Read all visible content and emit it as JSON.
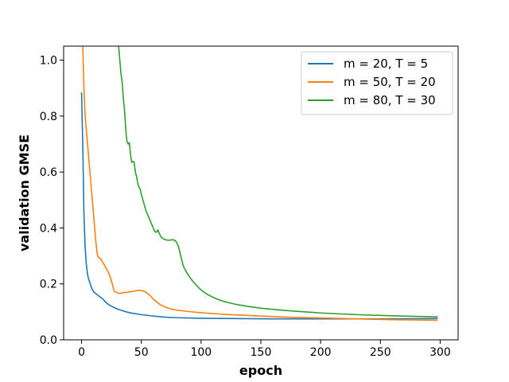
{
  "chart_data": {
    "type": "line",
    "xlabel": "epoch",
    "ylabel": "validation GMSE",
    "xlim": [
      -15,
      315
    ],
    "ylim": [
      0.0,
      1.05
    ],
    "xticks": [
      0,
      50,
      100,
      150,
      200,
      250,
      300
    ],
    "yticks": [
      0.0,
      0.2,
      0.4,
      0.6,
      0.8,
      1.0
    ],
    "grid": false,
    "legend_position": "top-right",
    "series": [
      {
        "name": "m = 20, T = 5",
        "color": "#1f77b4",
        "points": [
          [
            0,
            0.885
          ],
          [
            1,
            0.7
          ],
          [
            2,
            0.45
          ],
          [
            3,
            0.33
          ],
          [
            4,
            0.27
          ],
          [
            5,
            0.235
          ],
          [
            6,
            0.215
          ],
          [
            7,
            0.205
          ],
          [
            8,
            0.19
          ],
          [
            9,
            0.18
          ],
          [
            10,
            0.172
          ],
          [
            12,
            0.165
          ],
          [
            15,
            0.155
          ],
          [
            18,
            0.145
          ],
          [
            20,
            0.135
          ],
          [
            23,
            0.125
          ],
          [
            26,
            0.118
          ],
          [
            30,
            0.11
          ],
          [
            35,
            0.103
          ],
          [
            40,
            0.097
          ],
          [
            50,
            0.09
          ],
          [
            60,
            0.085
          ],
          [
            70,
            0.081
          ],
          [
            80,
            0.079
          ],
          [
            100,
            0.077
          ],
          [
            130,
            0.076
          ],
          [
            160,
            0.075
          ],
          [
            200,
            0.075
          ],
          [
            250,
            0.075
          ],
          [
            298,
            0.076
          ]
        ]
      },
      {
        "name": "m = 50, T = 20",
        "color": "#ff7f0e",
        "points": [
          [
            1,
            1.05
          ],
          [
            2,
            0.9
          ],
          [
            3,
            0.8
          ],
          [
            5,
            0.7
          ],
          [
            7,
            0.6
          ],
          [
            9,
            0.5
          ],
          [
            11,
            0.4
          ],
          [
            12,
            0.35
          ],
          [
            13,
            0.31
          ],
          [
            14,
            0.295
          ],
          [
            16,
            0.29
          ],
          [
            18,
            0.275
          ],
          [
            20,
            0.26
          ],
          [
            22,
            0.245
          ],
          [
            24,
            0.225
          ],
          [
            26,
            0.195
          ],
          [
            27,
            0.178
          ],
          [
            28,
            0.172
          ],
          [
            30,
            0.168
          ],
          [
            32,
            0.165
          ],
          [
            34,
            0.168
          ],
          [
            36,
            0.17
          ],
          [
            38,
            0.169
          ],
          [
            40,
            0.172
          ],
          [
            42,
            0.172
          ],
          [
            44,
            0.174
          ],
          [
            46,
            0.176
          ],
          [
            48,
            0.177
          ],
          [
            50,
            0.176
          ],
          [
            52,
            0.174
          ],
          [
            54,
            0.17
          ],
          [
            56,
            0.163
          ],
          [
            58,
            0.155
          ],
          [
            60,
            0.145
          ],
          [
            63,
            0.135
          ],
          [
            66,
            0.125
          ],
          [
            70,
            0.117
          ],
          [
            75,
            0.11
          ],
          [
            80,
            0.106
          ],
          [
            90,
            0.101
          ],
          [
            100,
            0.097
          ],
          [
            120,
            0.091
          ],
          [
            140,
            0.087
          ],
          [
            160,
            0.083
          ],
          [
            180,
            0.08
          ],
          [
            200,
            0.078
          ],
          [
            230,
            0.075
          ],
          [
            260,
            0.072
          ],
          [
            298,
            0.07
          ]
        ]
      },
      {
        "name": "m = 80, T = 30",
        "color": "#2ca02c",
        "points": [
          [
            31,
            1.05
          ],
          [
            33,
            0.95
          ],
          [
            34,
            0.92
          ],
          [
            35,
            0.86
          ],
          [
            36,
            0.82
          ],
          [
            37,
            0.75
          ],
          [
            38,
            0.71
          ],
          [
            39,
            0.7
          ],
          [
            40,
            0.705
          ],
          [
            41,
            0.66
          ],
          [
            42,
            0.635
          ],
          [
            43,
            0.638
          ],
          [
            44,
            0.635
          ],
          [
            45,
            0.6
          ],
          [
            46,
            0.585
          ],
          [
            47,
            0.56
          ],
          [
            48,
            0.545
          ],
          [
            49,
            0.54
          ],
          [
            50,
            0.52
          ],
          [
            52,
            0.49
          ],
          [
            54,
            0.46
          ],
          [
            56,
            0.44
          ],
          [
            58,
            0.42
          ],
          [
            60,
            0.4
          ],
          [
            61,
            0.39
          ],
          [
            62,
            0.385
          ],
          [
            63,
            0.386
          ],
          [
            64,
            0.393
          ],
          [
            65,
            0.38
          ],
          [
            67,
            0.365
          ],
          [
            69,
            0.36
          ],
          [
            71,
            0.357
          ],
          [
            73,
            0.356
          ],
          [
            75,
            0.357
          ],
          [
            77,
            0.358
          ],
          [
            79,
            0.352
          ],
          [
            81,
            0.335
          ],
          [
            83,
            0.3
          ],
          [
            85,
            0.265
          ],
          [
            88,
            0.24
          ],
          [
            92,
            0.215
          ],
          [
            96,
            0.195
          ],
          [
            100,
            0.178
          ],
          [
            105,
            0.163
          ],
          [
            110,
            0.152
          ],
          [
            115,
            0.143
          ],
          [
            120,
            0.136
          ],
          [
            130,
            0.126
          ],
          [
            140,
            0.119
          ],
          [
            150,
            0.113
          ],
          [
            170,
            0.105
          ],
          [
            200,
            0.096
          ],
          [
            230,
            0.09
          ],
          [
            260,
            0.086
          ],
          [
            298,
            0.082
          ]
        ]
      }
    ]
  }
}
